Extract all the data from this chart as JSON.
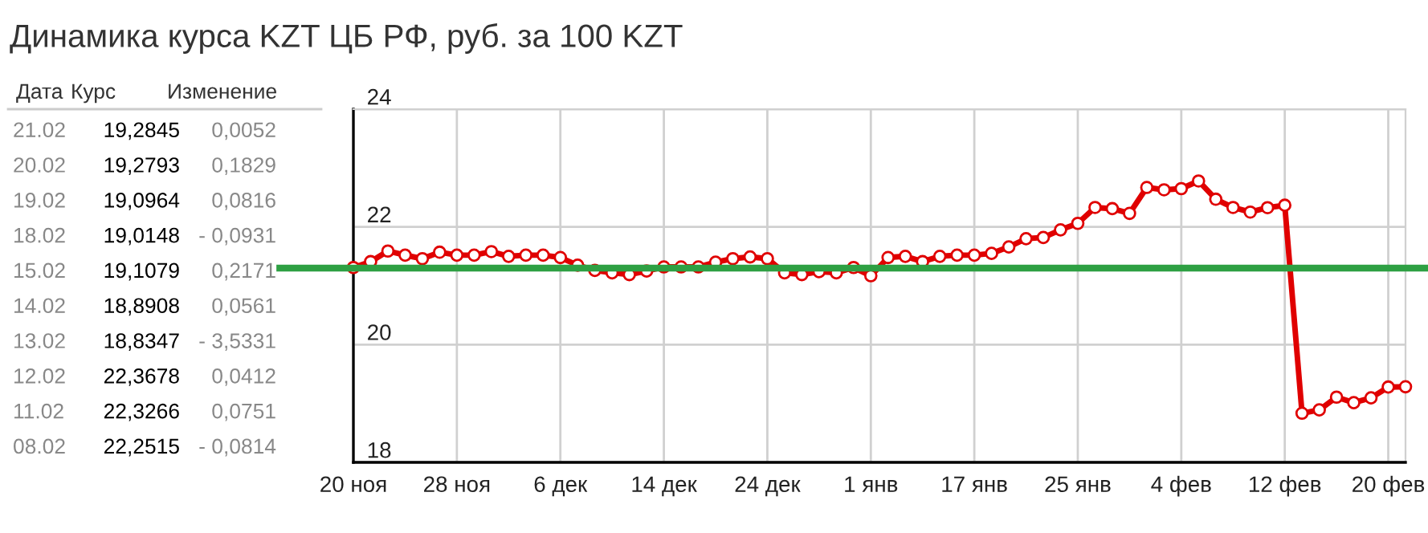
{
  "chart_data": [
    {
      "type": "other",
      "title": "Динамика курса KZT ЦБ РФ, руб. за 100 KZT",
      "annotations": [
        "Дата",
        "Курс",
        "Изменение",
        "21.02",
        "19,2845",
        "0,0052",
        "20.02",
        "19,2793",
        "0,1829",
        "19.02",
        "19,0964",
        "0,0816",
        "18.02",
        "19,0148",
        "- 0,0931",
        "15.02",
        "19,1079",
        "0,2171",
        "14.02",
        "18,8908",
        "0,0561",
        "13.02",
        "18,8347",
        "- 3,5331",
        "12.02",
        "22,3678",
        "0,0412",
        "11.02",
        "22,3266",
        "0,0751",
        "08.02",
        "22,2515",
        "- 0,0814"
      ]
    },
    {
      "type": "line",
      "categories": [
        "20 ноя",
        null,
        null,
        null,
        null,
        null,
        "28 ноя",
        null,
        null,
        null,
        null,
        null,
        "6 дек",
        null,
        null,
        null,
        null,
        null,
        "14 дек",
        null,
        null,
        null,
        null,
        null,
        "24 дек",
        null,
        null,
        null,
        null,
        null,
        "1 янв",
        null,
        null,
        null,
        null,
        null,
        "17 янв",
        null,
        null,
        null,
        null,
        null,
        "25 янв",
        null,
        null,
        null,
        null,
        null,
        "4 фев",
        null,
        null,
        null,
        null,
        null,
        "12 фев",
        null,
        null,
        null,
        null,
        null,
        "20 фев",
        null
      ],
      "series": [
        {
          "color": "#e00000",
          "values": [
            21.31,
            21.41,
            21.59,
            21.52,
            21.46,
            21.57,
            21.52,
            21.52,
            21.58,
            21.5,
            21.52,
            21.52,
            21.48,
            21.35,
            21.26,
            21.22,
            21.19,
            21.25,
            21.32,
            21.32,
            21.32,
            21.4,
            21.46,
            21.49,
            21.46,
            21.22,
            21.19,
            21.24,
            21.22,
            21.31,
            21.17,
            21.48,
            21.5,
            21.41,
            21.5,
            21.52,
            21.52,
            21.55,
            21.66,
            21.8,
            21.82,
            21.95,
            22.06,
            22.33,
            22.31,
            22.23,
            22.67,
            22.63,
            22.65,
            22.78,
            22.47,
            22.33,
            22.2515,
            22.3266,
            22.3678,
            18.8347,
            18.8908,
            19.1079,
            19.0148,
            19.0964,
            19.2793,
            19.2845
          ]
        }
      ],
      "ylim": [
        18,
        24
      ],
      "yticks": [
        18,
        20,
        22,
        24
      ],
      "grid": true,
      "marker": "circle",
      "line_style": "solid",
      "ref_lines": [
        {
          "axis": "y",
          "value": 21.3,
          "color": "#2ea043"
        }
      ]
    }
  ]
}
